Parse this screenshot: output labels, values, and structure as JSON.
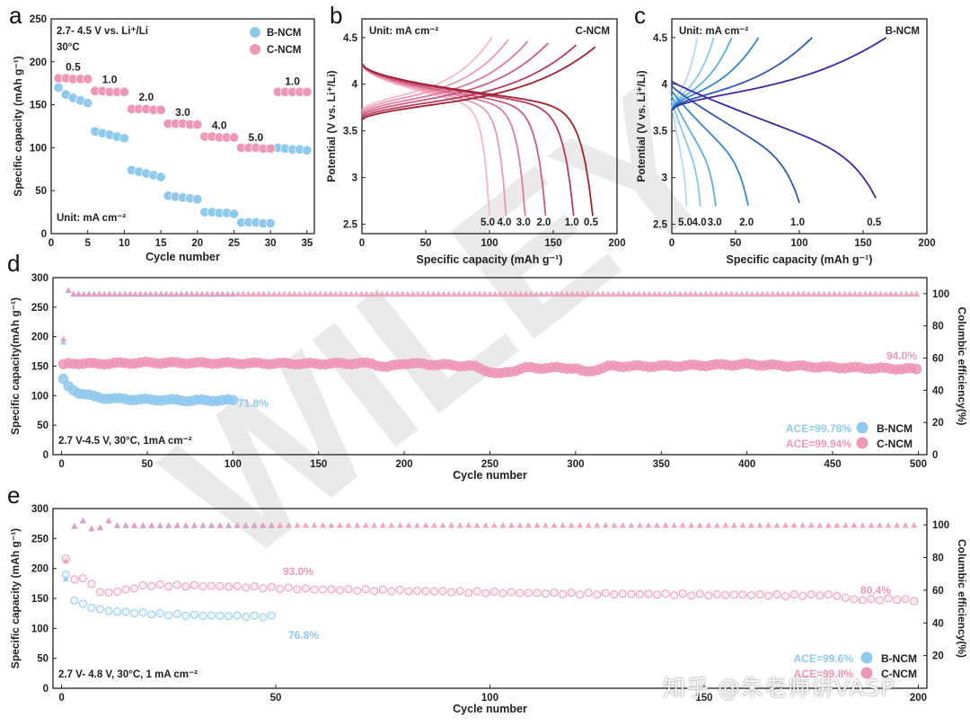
{
  "watermark": {
    "diagonal": "WILEY",
    "corner": "知乎 @朱老师讲VASP"
  },
  "colors": {
    "bncm": "#8ec9ee",
    "cncm": "#ef97b8"
  },
  "chart_data": [
    {
      "panel": "a",
      "type": "scatter",
      "ylabel": "Specific capacity (mAh g⁻¹)",
      "xlabel": "Cycle number",
      "xlim": [
        0,
        36
      ],
      "ylim": [
        0,
        250
      ],
      "xticks": [
        0,
        5,
        10,
        15,
        20,
        25,
        30,
        35
      ],
      "yticks": [
        0,
        50,
        100,
        150,
        200,
        250
      ],
      "notes": [
        "2.7- 4.5 V vs. Li⁺/Li",
        "30°C",
        "Unit: mA cm⁻²"
      ],
      "rate_labels": [
        {
          "text": "0.5",
          "x": 3,
          "y": 190
        },
        {
          "text": "1.0",
          "x": 8,
          "y": 175
        },
        {
          "text": "2.0",
          "x": 13,
          "y": 155
        },
        {
          "text": "3.0",
          "x": 18,
          "y": 137
        },
        {
          "text": "4.0",
          "x": 23,
          "y": 122
        },
        {
          "text": "5.0",
          "x": 28,
          "y": 108
        },
        {
          "text": "1.0",
          "x": 33,
          "y": 173
        }
      ],
      "series": [
        {
          "name": "B-NCM",
          "x": [
            1,
            2,
            3,
            4,
            5,
            6,
            7,
            8,
            9,
            10,
            11,
            12,
            13,
            14,
            15,
            16,
            17,
            18,
            19,
            20,
            21,
            22,
            23,
            24,
            25,
            26,
            27,
            28,
            29,
            30,
            31,
            32,
            33,
            34,
            35
          ],
          "y": [
            170,
            162,
            158,
            155,
            152,
            119,
            117,
            115,
            113,
            111,
            74,
            72,
            70,
            68,
            66,
            44,
            43,
            42,
            41,
            40,
            25,
            25,
            24,
            24,
            23,
            13,
            13,
            13,
            12,
            12,
            100,
            99,
            98,
            98,
            97
          ]
        },
        {
          "name": "C-NCM",
          "x": [
            1,
            2,
            3,
            4,
            5,
            6,
            7,
            8,
            9,
            10,
            11,
            12,
            13,
            14,
            15,
            16,
            17,
            18,
            19,
            20,
            21,
            22,
            23,
            24,
            25,
            26,
            27,
            28,
            29,
            30,
            31,
            32,
            33,
            34,
            35
          ],
          "y": [
            181,
            181,
            180,
            180,
            180,
            166,
            166,
            165,
            165,
            165,
            145,
            145,
            145,
            144,
            144,
            128,
            128,
            128,
            127,
            127,
            113,
            113,
            112,
            112,
            112,
            100,
            100,
            100,
            99,
            99,
            165,
            165,
            165,
            165,
            165
          ]
        }
      ]
    },
    {
      "panel": "b",
      "type": "line",
      "label": "C-NCM",
      "ylabel": "Potential (V vs. Li⁺/Li)",
      "xlabel": "Specific capacity (mAh g⁻¹)",
      "xlim": [
        0,
        200
      ],
      "ylim": [
        2.4,
        4.7
      ],
      "xticks": [
        0,
        50,
        100,
        150,
        200
      ],
      "yticks": [
        2.5,
        3.0,
        3.5,
        4.0,
        4.5
      ],
      "notes": [
        "Unit: mA cm⁻²"
      ],
      "series": [
        {
          "name": "5.0",
          "rate": 5.0,
          "qmax": 100,
          "charge_top": 102,
          "color": "#f4b8c8"
        },
        {
          "name": "4.0",
          "rate": 4.0,
          "qmax": 113,
          "charge_top": 115,
          "color": "#ec99b2"
        },
        {
          "name": "3.0",
          "rate": 3.0,
          "qmax": 128,
          "charge_top": 130,
          "color": "#e07a9b"
        },
        {
          "name": "2.0",
          "rate": 2.0,
          "qmax": 144,
          "charge_top": 146,
          "color": "#d05a82"
        },
        {
          "name": "1.0",
          "rate": 1.0,
          "qmax": 166,
          "charge_top": 168,
          "color": "#bc3a62"
        },
        {
          "name": "0.5",
          "rate": 0.5,
          "qmax": 181,
          "charge_top": 183,
          "color": "#a3202f"
        }
      ]
    },
    {
      "panel": "c",
      "type": "line",
      "label": "B-NCM",
      "ylabel": "Potential (V vs. Li⁺/Li)",
      "xlabel": "Specific capacity (mAh g⁻¹)",
      "xlim": [
        0,
        200
      ],
      "ylim": [
        2.4,
        4.7
      ],
      "xticks": [
        0,
        50,
        100,
        150,
        200
      ],
      "yticks": [
        2.5,
        3.0,
        3.5,
        4.0,
        4.5
      ],
      "notes": [
        "Unit: mA cm⁻²"
      ],
      "series": [
        {
          "name": "5.0",
          "rate": 5.0,
          "qmax": 12,
          "charge_top": 20,
          "color": "#b3dcf3"
        },
        {
          "name": "4.0",
          "rate": 4.0,
          "qmax": 23,
          "charge_top": 33,
          "color": "#8bc6ec"
        },
        {
          "name": "3.0",
          "rate": 3.0,
          "qmax": 35,
          "charge_top": 47,
          "color": "#5daee3"
        },
        {
          "name": "2.0",
          "rate": 2.0,
          "qmax": 60,
          "charge_top": 68,
          "color": "#3287cf"
        },
        {
          "name": "1.0",
          "rate": 1.0,
          "qmax": 100,
          "charge_top": 110,
          "color": "#2f59b8"
        },
        {
          "name": "0.5",
          "rate": 0.5,
          "qmax": 160,
          "charge_top": 168,
          "color": "#3b2aa3"
        }
      ]
    },
    {
      "panel": "d",
      "type": "scatter",
      "ylabel": "Specific capacity(mAh g⁻¹)",
      "y2label": "Columbic efficiency(%)",
      "xlabel": "Cycle number",
      "xlim": [
        -5,
        505
      ],
      "ylim": [
        0,
        300
      ],
      "y2lim": [
        0,
        110
      ],
      "xticks": [
        0,
        50,
        100,
        150,
        200,
        250,
        300,
        350,
        400,
        450,
        500
      ],
      "yticks": [
        0,
        50,
        100,
        150,
        200,
        250,
        300
      ],
      "y2ticks": [
        0,
        20,
        40,
        60,
        80,
        100
      ],
      "notes": [
        "2.7 V-4.5 V, 30°C, 1mA cm⁻²"
      ],
      "retention": [
        {
          "text": "71.8%",
          "series": "B-NCM"
        },
        {
          "text": "94.0%",
          "series": "C-NCM"
        }
      ],
      "ace": [
        {
          "text": "ACE=99.78%",
          "series": "B-NCM"
        },
        {
          "text": "ACE=99.94%",
          "series": "C-NCM"
        }
      ],
      "series": [
        {
          "name": "B-NCM",
          "capacity": {
            "x": [
              1,
              3,
              5,
              8,
              10,
              15,
              20,
              25,
              30,
              40,
              50,
              60,
              70,
              80,
              90,
              100
            ],
            "y": [
              127,
              118,
              113,
              108,
              105,
              101,
              98,
              96,
              95,
              94,
              93,
              93,
              92,
              92,
              92,
              92
            ]
          },
          "efficiency": {
            "first": 70,
            "steady": 99.8,
            "cycles": 100
          }
        },
        {
          "name": "C-NCM",
          "capacity": {
            "x": [
              1,
              5,
              20,
              50,
              100,
              150,
              180,
              190,
              200,
              240,
              255,
              270,
              300,
              305,
              320,
              350,
              400,
              450,
              500
            ],
            "y": [
              152,
              155,
              154,
              156,
              155,
              154,
              155,
              148,
              155,
              150,
              136,
              147,
              147,
              139,
              150,
              150,
              153,
              148,
              145
            ]
          },
          "efficiency": {
            "first": 72,
            "steady": 99.9,
            "cycles": 500
          }
        }
      ]
    },
    {
      "panel": "e",
      "type": "scatter",
      "ylabel": "Specific capacity (mAh g⁻¹)",
      "y2label": "Columbic efficiency(%)",
      "xlabel": "Cycle number",
      "xlim": [
        -2,
        202
      ],
      "ylim": [
        0,
        300
      ],
      "y2lim": [
        0,
        110
      ],
      "xticks": [
        0,
        50,
        100,
        150,
        200
      ],
      "yticks": [
        0,
        50,
        100,
        150,
        200,
        250,
        300
      ],
      "y2ticks": [
        20,
        40,
        60,
        80,
        100
      ],
      "notes": [
        "2.7 V- 4.8 V, 30°C, 1 mA cm⁻²"
      ],
      "retention": [
        {
          "text": "76.8%",
          "series": "B-NCM"
        },
        {
          "text": "93.0%",
          "series": "C-NCM"
        },
        {
          "text": "80.4%",
          "series": "C-NCM"
        }
      ],
      "ace": [
        {
          "text": "ACE=99.6%",
          "series": "B-NCM"
        },
        {
          "text": "ACE=99.8%",
          "series": "C-NCM"
        }
      ],
      "series": [
        {
          "name": "B-NCM",
          "capacity": {
            "x": [
              1,
              2,
              3,
              5,
              8,
              10,
              15,
              20,
              25,
              30,
              35,
              40,
              45,
              50
            ],
            "y": [
              188,
              155,
              148,
              140,
              133,
              130,
              127,
              125,
              123,
              122,
              121,
              121,
              120,
              120
            ]
          },
          "efficiency": {
            "first": 67,
            "steady": 99.6,
            "cycles": 50
          }
        },
        {
          "name": "C-NCM",
          "capacity": {
            "x": [
              1,
              3,
              6,
              7,
              9,
              12,
              20,
              40,
              60,
              80,
              100,
              120,
              140,
              150,
              160,
              170,
              180,
              185,
              190,
              195,
              200
            ],
            "y": [
              215,
              183,
              182,
              175,
              160,
              160,
              172,
              170,
              165,
              163,
              160,
              158,
              157,
              156,
              156,
              155,
              156,
              148,
              148,
              149,
              146
            ]
          },
          "efficiency": {
            "first": 78,
            "steady": 99.8,
            "cycles": 200
          }
        }
      ]
    }
  ]
}
